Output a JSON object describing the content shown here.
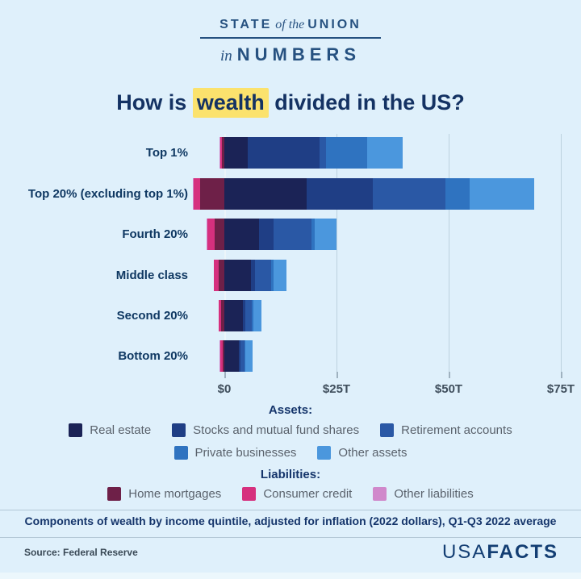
{
  "header": {
    "logo_line1_left": "STATE",
    "logo_line1_mid": "of the",
    "logo_line1_right": "UNION",
    "logo_line2_prefix": "in",
    "logo_line2_main": "NUMBERS"
  },
  "title": {
    "prefix": "How is ",
    "highlight": "wealth",
    "suffix": " divided in the US?"
  },
  "chart_data": {
    "type": "bar",
    "orientation": "horizontal",
    "stacked": true,
    "unit": "trillions of 2022 dollars",
    "categories": [
      "Top 1%",
      "Top 20% (excluding top 1%)",
      "Fourth 20%",
      "Middle class",
      "Second 20%",
      "Bottom 20%"
    ],
    "series": [
      {
        "key": "real_estate",
        "name": "Real estate",
        "group": "assets",
        "color": "#1b2356",
        "values": [
          5.2,
          18.4,
          7.8,
          6.0,
          4.2,
          3.3
        ]
      },
      {
        "key": "stocks",
        "name": "Stocks and mutual fund shares",
        "group": "assets",
        "color": "#1f3e85",
        "values": [
          16.0,
          14.7,
          3.2,
          0.9,
          0.5,
          0.3
        ]
      },
      {
        "key": "retirement",
        "name": "Retirement accounts",
        "group": "assets",
        "color": "#2a58a5",
        "values": [
          1.4,
          16.2,
          8.5,
          3.6,
          1.5,
          0.9
        ]
      },
      {
        "key": "private_businesses",
        "name": "Private businesses",
        "group": "assets",
        "color": "#2f73c0",
        "values": [
          9.3,
          5.4,
          0.7,
          0.4,
          0.3,
          0.2
        ]
      },
      {
        "key": "other_assets",
        "name": "Other assets",
        "group": "assets",
        "color": "#4b97dd",
        "values": [
          7.8,
          14.4,
          4.8,
          3.0,
          1.8,
          1.6
        ]
      },
      {
        "key": "home_mortgages",
        "name": "Home mortgages",
        "group": "liabilities",
        "color": "#6e2048",
        "values": [
          0.6,
          5.4,
          2.2,
          1.3,
          0.7,
          0.4
        ]
      },
      {
        "key": "consumer_credit",
        "name": "Consumer credit",
        "group": "liabilities",
        "color": "#d6307e",
        "values": [
          0.3,
          1.4,
          1.5,
          1.0,
          0.5,
          0.5
        ]
      },
      {
        "key": "other_liabilities",
        "name": "Other liabilities",
        "group": "liabilities",
        "color": "#d088cb",
        "values": [
          0.1,
          0.2,
          0.2,
          0.1,
          0.1,
          0.1
        ]
      }
    ],
    "x_ticks": [
      "$0",
      "$25T",
      "$50T",
      "$75T"
    ],
    "x_tick_values": [
      0,
      25,
      50,
      75
    ],
    "xlim": [
      -8,
      80
    ],
    "grid": true,
    "legend_position": "bottom",
    "note": "Liabilities plotted to the left of $0, assets stacked to the right"
  },
  "legend": {
    "assets_header": "Assets:",
    "liabilities_header": "Liabilities:"
  },
  "footer": {
    "caption": "Components of wealth by income quintile, adjusted for inflation (2022 dollars), Q1-Q3 2022 average",
    "source": "Source: Federal Reserve",
    "brand_light": "USA",
    "brand_bold": "FACTS"
  },
  "colors": {
    "background": "#dff0fb",
    "title_text": "#143263",
    "logo_navy": "#265180",
    "highlight": "#fbe26d",
    "row_label": "#0f3862",
    "tick_label": "#3f4e5c",
    "legend_label": "#5a626c",
    "divider": "#b3c8d6",
    "brand_navy": "#133e73"
  }
}
